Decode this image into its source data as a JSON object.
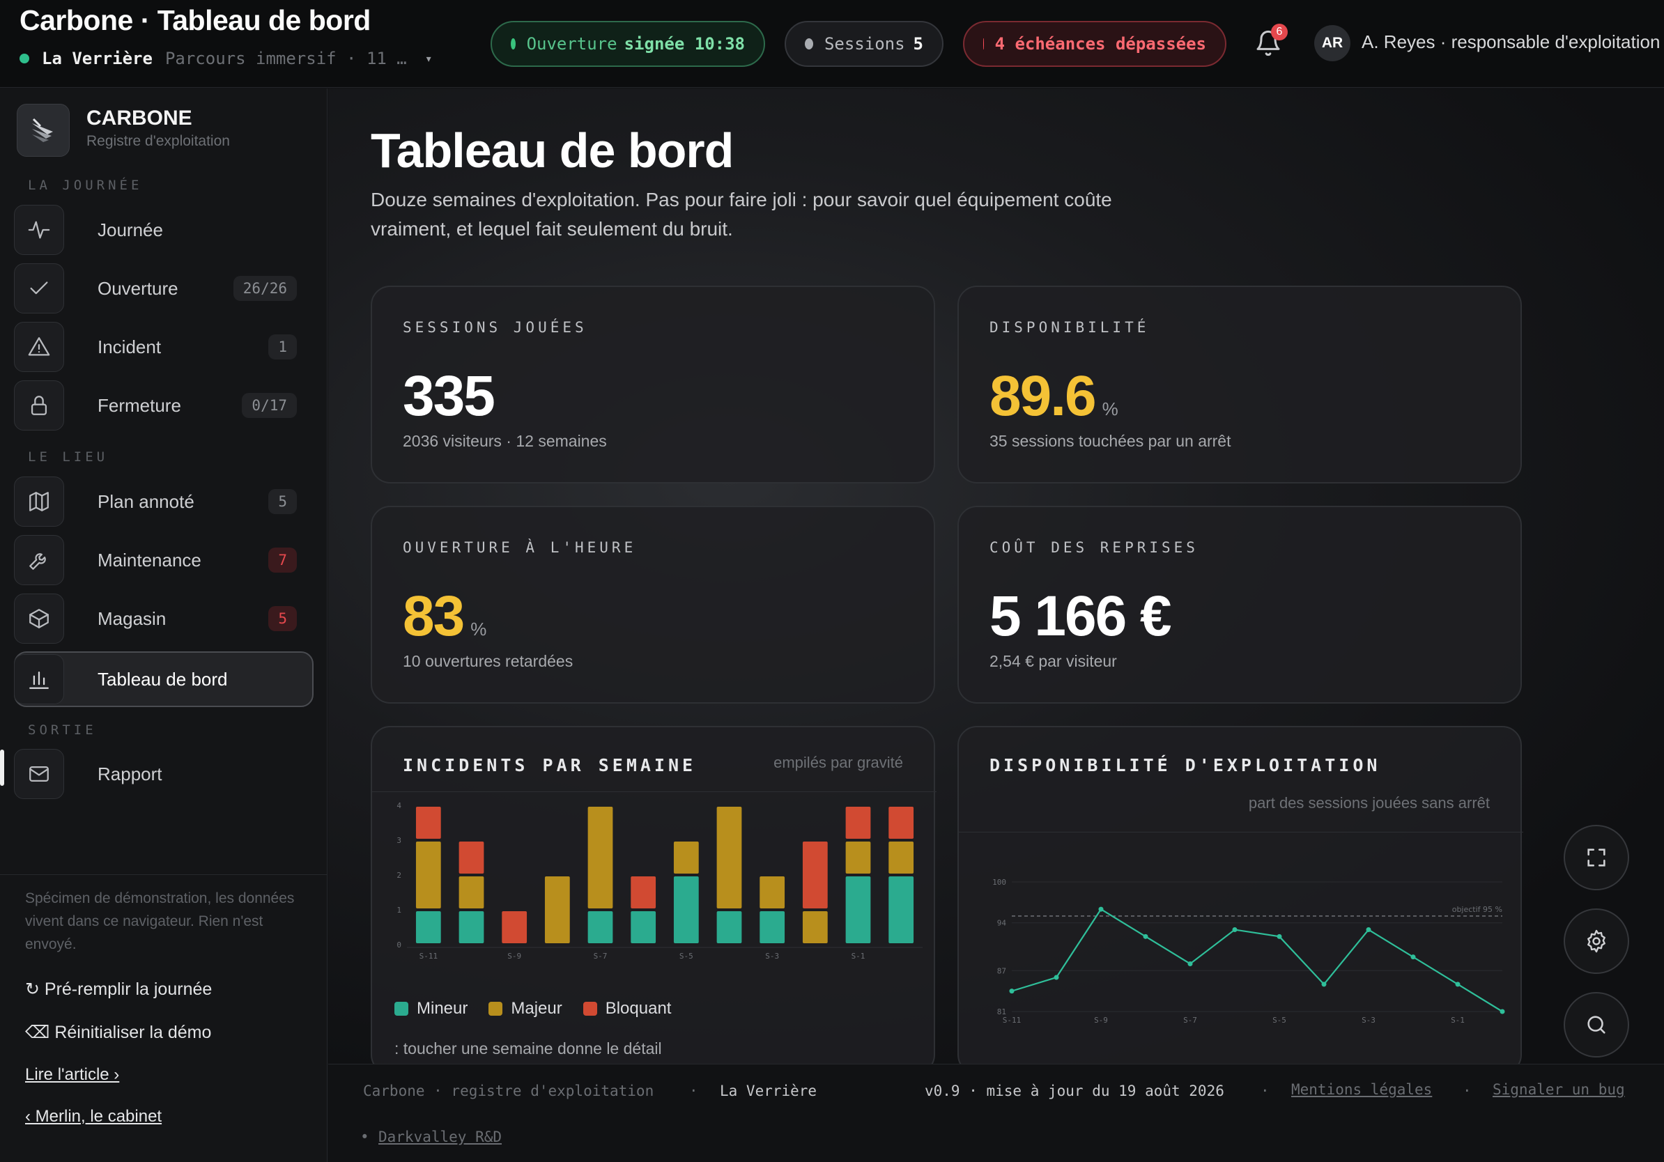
{
  "topbar": {
    "app_title": "Carbone · Tableau de bord",
    "venue_name": "La Verrière",
    "venue_route": "Parcours immersif · 11 …",
    "opening_label": "Ouverture",
    "opening_value": "signée 10:38",
    "sessions_label": "Sessions",
    "sessions_value": "5",
    "late_label": "4 échéances dépassées",
    "notif_count": "6",
    "user_initials": "AR",
    "user_name": "A. Reyes · responsable d'exploitation"
  },
  "sidebar": {
    "brand_name": "CARBONE",
    "brand_sub": "Registre d'exploitation",
    "sections": [
      {
        "label": "LA JOURNÉE"
      },
      {
        "label": "LE LIEU"
      },
      {
        "label": "SORTIE"
      }
    ],
    "items": [
      {
        "label": "Journée",
        "badge": "",
        "icon": "pulse-icon"
      },
      {
        "label": "Ouverture",
        "badge": "26/26",
        "icon": "check-icon"
      },
      {
        "label": "Incident",
        "badge": "1",
        "icon": "warning-icon"
      },
      {
        "label": "Fermeture",
        "badge": "0/17",
        "icon": "lock-icon"
      },
      {
        "label": "Plan annoté",
        "badge": "5",
        "icon": "map-icon"
      },
      {
        "label": "Maintenance",
        "badge": "7",
        "icon": "wrench-icon"
      },
      {
        "label": "Magasin",
        "badge": "5",
        "icon": "box-icon"
      },
      {
        "label": "Tableau de bord",
        "badge": "",
        "icon": "bar-chart-icon"
      },
      {
        "label": "Rapport",
        "badge": "",
        "icon": "mail-icon"
      }
    ],
    "note": "Spécimen de démonstration, les données vivent dans ce navigateur. Rien n'est envoyé.",
    "prefill": "Pré-remplir la journée",
    "reset": "Réinitialiser la démo",
    "read_article": "Lire l'article ›",
    "back_link": "‹ Merlin, le cabinet"
  },
  "main": {
    "title": "Tableau de bord",
    "description": "Douze semaines d'exploitation. Pas pour faire joli : pour savoir quel équipement coûte vraiment, et lequel fait seulement du bruit.",
    "kpis": [
      {
        "label": "SESSIONS JOUÉES",
        "value": "335",
        "unit": "",
        "sub": "2036 visiteurs · 12 semaines"
      },
      {
        "label": "DISPONIBILITÉ",
        "value": "89.6",
        "unit": "%",
        "sub": "35 sessions touchées par un arrêt"
      },
      {
        "label": "OUVERTURE À L'HEURE",
        "value": "83",
        "unit": "%",
        "sub": "10 ouvertures retardées"
      },
      {
        "label": "COÛT DES REPRISES",
        "value": "5 166 €",
        "unit": "",
        "sub": "2,54 € par visiteur"
      }
    ],
    "incidents_title": "INCIDENTS PAR SEMAINE",
    "incidents_note": "empilés par gravité",
    "legend": [
      "Mineur",
      "Majeur",
      "Bloquant"
    ],
    "tap_hint": ": toucher une semaine donne le détail",
    "avail_title": "DISPONIBILITÉ D'EXPLOITATION",
    "avail_note": "part des sessions jouées sans arrêt",
    "target_label": "objectif 95 %"
  },
  "chart_data": [
    {
      "type": "bar",
      "title": "INCIDENTS PAR SEMAINE",
      "categories": [
        "S-11",
        "S-10",
        "S-9",
        "S-8",
        "S-7",
        "S-6",
        "S-5",
        "S-4",
        "S-3",
        "S-2",
        "S-1",
        "S-0"
      ],
      "tick_labels": [
        "S-11",
        "S-9",
        "S-7",
        "S-5",
        "S-3",
        "S-1"
      ],
      "series": [
        {
          "name": "Mineur",
          "values": [
            1,
            1,
            0,
            0,
            1,
            1,
            2,
            1,
            1,
            0,
            2,
            2
          ]
        },
        {
          "name": "Majeur",
          "values": [
            2,
            1,
            0,
            2,
            3,
            0,
            1,
            3,
            1,
            1,
            1,
            1
          ]
        },
        {
          "name": "Bloquant",
          "values": [
            1,
            1,
            1,
            0,
            0,
            1,
            0,
            0,
            0,
            2,
            1,
            1
          ]
        }
      ],
      "ylim": [
        0,
        4
      ],
      "yticks": [
        0,
        1,
        2,
        3,
        4
      ],
      "colors": [
        "#2bab8f",
        "#b88f1d",
        "#d14a32"
      ]
    },
    {
      "type": "line",
      "title": "DISPONIBILITÉ D'EXPLOITATION",
      "x": [
        "S-11",
        "S-10",
        "S-9",
        "S-8",
        "S-7",
        "S-6",
        "S-5",
        "S-4",
        "S-3",
        "S-2",
        "S-1",
        "S-0"
      ],
      "tick_labels": [
        "S-11",
        "S-9",
        "S-7",
        "S-5",
        "S-3",
        "S-1"
      ],
      "values": [
        84,
        86,
        96,
        92,
        88,
        93,
        92,
        85,
        93,
        89,
        85,
        81
      ],
      "target": 95,
      "ylim": [
        81,
        100
      ],
      "yticks": [
        81,
        87,
        94,
        100
      ],
      "color": "#2fbf9a"
    }
  ],
  "footer": {
    "brand": "Carbone · registre d'exploitation",
    "sep": "·",
    "venue": "La Verrière",
    "version": "v0.9 · mise à jour du 19 août 2026",
    "legal": "Mentions légales",
    "bug": "Signaler un bug",
    "credit": "Darkvalley R&D"
  }
}
